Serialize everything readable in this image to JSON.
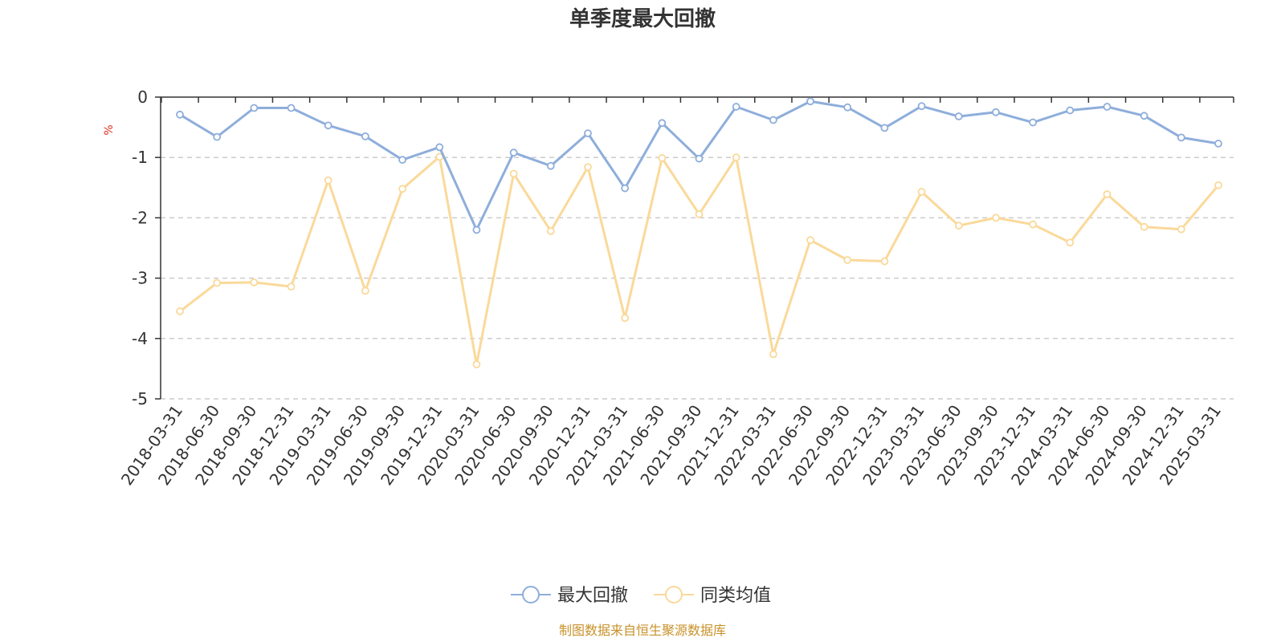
{
  "chart_data": {
    "type": "line",
    "title": "单季度最大回撤",
    "ylabel": "%",
    "ylim": [
      -5,
      0
    ],
    "yticks": [
      "0",
      "-1",
      "-2",
      "-3",
      "-4",
      "-5"
    ],
    "grid": true,
    "legend_position": "bottom-center",
    "categories": [
      "2018-03-31",
      "2018-06-30",
      "2018-09-30",
      "2018-12-31",
      "2019-03-31",
      "2019-06-30",
      "2019-09-30",
      "2019-12-31",
      "2020-03-31",
      "2020-06-30",
      "2020-09-30",
      "2020-12-31",
      "2021-03-31",
      "2021-06-30",
      "2021-09-30",
      "2021-12-31",
      "2022-03-31",
      "2022-06-30",
      "2022-09-30",
      "2022-12-31",
      "2023-03-31",
      "2023-06-30",
      "2023-09-30",
      "2023-12-31",
      "2024-03-31",
      "2024-06-30",
      "2024-09-30",
      "2024-12-31",
      "2025-03-31"
    ],
    "series": [
      {
        "name": "最大回撤",
        "color": "#8eaedb",
        "values": [
          -0.29,
          -0.66,
          -0.18,
          -0.18,
          -0.47,
          -0.65,
          -1.04,
          -0.83,
          -2.2,
          -0.92,
          -1.14,
          -0.6,
          -1.51,
          -0.43,
          -1.02,
          -0.16,
          -0.38,
          -0.07,
          -0.17,
          -0.51,
          -0.15,
          -0.32,
          -0.25,
          -0.42,
          -0.22,
          -0.16,
          -0.31,
          -0.67,
          -0.77
        ]
      },
      {
        "name": "同类均值",
        "color": "#fad99a",
        "values": [
          -3.55,
          -3.08,
          -3.07,
          -3.14,
          -1.38,
          -3.21,
          -1.52,
          -0.99,
          -4.43,
          -1.27,
          -2.22,
          -1.16,
          -3.66,
          -1.01,
          -1.94,
          -1.0,
          -4.26,
          -2.37,
          -2.7,
          -2.72,
          -1.57,
          -2.13,
          -2.0,
          -2.11,
          -2.41,
          -1.61,
          -2.15,
          -2.19,
          -1.46
        ]
      }
    ]
  },
  "source": "制图数据来自恒生聚源数据库"
}
